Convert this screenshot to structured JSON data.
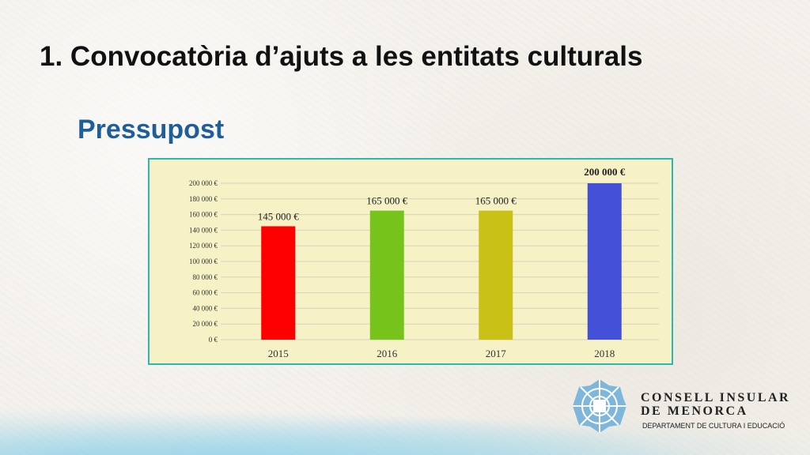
{
  "slide": {
    "title": "1. Convocatòria d’ajuts a les entitats culturals",
    "subtitle": "Pressupost"
  },
  "chart_data": {
    "type": "bar",
    "categories": [
      "2015",
      "2016",
      "2017",
      "2018"
    ],
    "values": [
      145000,
      165000,
      165000,
      200000
    ],
    "data_labels": [
      "145 000 €",
      "165 000 €",
      "165 000 €",
      "200 000 €"
    ],
    "bar_colors": [
      "#ff0000",
      "#76c41b",
      "#c9c116",
      "#4450d8"
    ],
    "ylim": [
      0,
      200000
    ],
    "y_ticks": [
      0,
      20000,
      40000,
      60000,
      80000,
      100000,
      120000,
      140000,
      160000,
      180000,
      200000
    ],
    "y_tick_labels": [
      "0 €",
      "20 000 €",
      "40 000 €",
      "60 000 €",
      "80 000 €",
      "100 000 €",
      "120 000 €",
      "140 000 €",
      "160 000 €",
      "180 000 €",
      "200 000 €"
    ],
    "grid": true,
    "title": "",
    "xlabel": "",
    "ylabel": ""
  },
  "logo": {
    "line1": "CONSELL INSULAR",
    "line2": "DE MENORCA",
    "department": "DEPARTAMENT DE CULTURA I EDUCACIÓ"
  }
}
